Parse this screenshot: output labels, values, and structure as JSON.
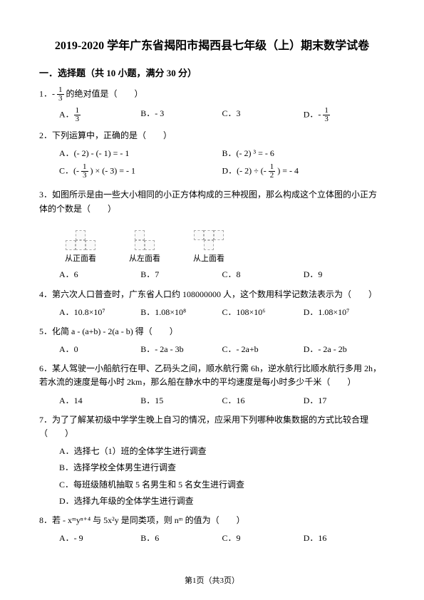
{
  "title": "2019-2020 学年广东省揭阳市揭西县七年级（上）期末数学试卷",
  "section1": "一．选择题（共 10 小题，满分 30 分）",
  "q1": {
    "text": "1．-  的绝对值是（　　）",
    "frac_num": "1",
    "frac_den": "3",
    "A_frac_num": "1",
    "A_frac_den": "3",
    "B": "B．- 3",
    "C": "C．3",
    "D_prefix": "D．- ",
    "D_frac_num": "1",
    "D_frac_den": "3"
  },
  "q2": {
    "text": "2．下列运算中，正确的是（　　）",
    "A": "A．(- 2) - (- 1) = - 1",
    "B": "B．(- 2) ³ = - 6",
    "C_prefix": "C．(- ",
    "C_frac_num": "1",
    "C_frac_den": "3",
    "C_suffix": " ) × (- 3) = - 1",
    "D_prefix": "D．(- 2) ÷ (- ",
    "D_frac_num": "1",
    "D_frac_den": "2",
    "D_suffix": " ) = - 4"
  },
  "q3": {
    "text": "3．如图所示是由一些大小相同的小正方体构成的三种视图，那么构成这个立体图的小正方体的个数是（　　）",
    "label_front": "从正面看",
    "label_left": "从左面看",
    "label_top": "从上面看",
    "A": "A．6",
    "B": "B．7",
    "C": "C．8",
    "D": "D．9"
  },
  "q4": {
    "text": "4．第六次人口普查时，广东省人口约 108000000 人，这个数用科学记数法表示为（　　）",
    "A": "A．10.8×10⁷",
    "B": "B．1.08×10⁸",
    "C": "C．108×10⁶",
    "D": "D．1.08×10⁷"
  },
  "q5": {
    "text": "5．化简 a - (a+b) - 2(a - b) 得（　　）",
    "A": "A．0",
    "B": "B．- 2a - 3b",
    "C": "C．- 2a+b",
    "D": "D．- 2a - 2b"
  },
  "q6": {
    "text": "6．某人驾驶一小船航行在甲、乙码头之间，顺水航行需 6h，逆水航行比顺水航行多用 2h，若水流的速度是每小时 2km，那么船在静水中的平均速度是每小时多少千米（　　）",
    "A": "A．14",
    "B": "B．15",
    "C": "C．16",
    "D": "D．17"
  },
  "q7": {
    "text": "7．为了了解某初级中学学生晚上自习的情况，应采用下列哪种收集数据的方式比较合理（　　）",
    "A": "A．选择七（1）班的全体学生进行调查",
    "B": "B．选择学校全体男生进行调查",
    "C": "C．每班级随机抽取 5 名男生和 5 名女生进行调查",
    "D": "D．选择九年级的全体学生进行调查"
  },
  "q8": {
    "text": "8．若 - xᵐyⁿ⁺⁴ 与 5x²y 是同类项，则 nᵐ 的值为（　　）",
    "A": "A．- 9",
    "B": "B．6",
    "C": "C．9",
    "D": "D．16"
  },
  "footer": "第1页（共3页）"
}
